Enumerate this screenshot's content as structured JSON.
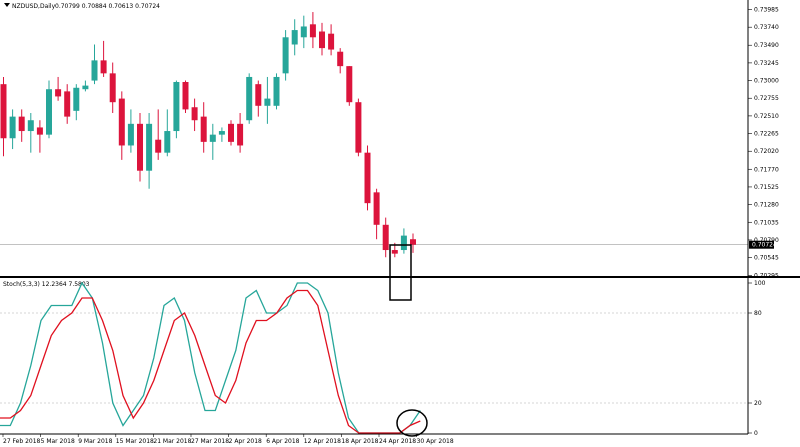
{
  "header": {
    "symbol_label": "NZDUSD,Daily",
    "ohlc_values": "0.70799 0.70884 0.70613 0.70724"
  },
  "colors": {
    "bull": "#26a69a",
    "bear": "#dc143c",
    "stoch_main": "#26a69a",
    "stoch_signal": "#e0101f",
    "grid": "#c8c8c8",
    "axis": "#000000",
    "price_line": "#9e9e9e"
  },
  "chart_data": [
    {
      "type": "candlestick",
      "title": "NZDUSD,Daily",
      "price_axis_ticks": [
        "0.73985",
        "0.73740",
        "0.73490",
        "0.73245",
        "0.73000",
        "0.72755",
        "0.72510",
        "0.72265",
        "0.72020",
        "0.71770",
        "0.71525",
        "0.71280",
        "0.71035",
        "0.70790",
        "0.70545",
        "0.70295"
      ],
      "ylim": [
        0.7029,
        0.7402
      ],
      "current_price": "0.70724",
      "date_labels": [
        "27 Feb 2018",
        "5 Mar 2018",
        "9 Mar 2018",
        "15 Mar 2018",
        "21 Mar 2018",
        "27 Mar 2018",
        "2 Apr 2018",
        "6 Apr 2018",
        "12 Apr 2018",
        "18 Apr 2018",
        "24 Apr 2018",
        "30 Apr 2018"
      ],
      "candles": [
        {
          "o": 0.7295,
          "h": 0.7305,
          "l": 0.7195,
          "c": 0.722
        },
        {
          "o": 0.722,
          "h": 0.726,
          "l": 0.7205,
          "c": 0.725
        },
        {
          "o": 0.725,
          "h": 0.726,
          "l": 0.7215,
          "c": 0.723
        },
        {
          "o": 0.723,
          "h": 0.7255,
          "l": 0.72,
          "c": 0.7245
        },
        {
          "o": 0.7235,
          "h": 0.7245,
          "l": 0.72,
          "c": 0.7225
        },
        {
          "o": 0.7225,
          "h": 0.73,
          "l": 0.722,
          "c": 0.7288
        },
        {
          "o": 0.7288,
          "h": 0.7305,
          "l": 0.7272,
          "c": 0.7278
        },
        {
          "o": 0.7285,
          "h": 0.7295,
          "l": 0.724,
          "c": 0.725
        },
        {
          "o": 0.7258,
          "h": 0.7295,
          "l": 0.7245,
          "c": 0.729
        },
        {
          "o": 0.7288,
          "h": 0.73,
          "l": 0.7285,
          "c": 0.7293
        },
        {
          "o": 0.73,
          "h": 0.735,
          "l": 0.7295,
          "c": 0.7328
        },
        {
          "o": 0.7328,
          "h": 0.7355,
          "l": 0.7305,
          "c": 0.731
        },
        {
          "o": 0.731,
          "h": 0.7325,
          "l": 0.7255,
          "c": 0.727
        },
        {
          "o": 0.7275,
          "h": 0.7285,
          "l": 0.719,
          "c": 0.721
        },
        {
          "o": 0.721,
          "h": 0.726,
          "l": 0.72,
          "c": 0.724
        },
        {
          "o": 0.724,
          "h": 0.7255,
          "l": 0.716,
          "c": 0.7175
        },
        {
          "o": 0.7175,
          "h": 0.7255,
          "l": 0.715,
          "c": 0.724
        },
        {
          "o": 0.7218,
          "h": 0.726,
          "l": 0.719,
          "c": 0.72
        },
        {
          "o": 0.72,
          "h": 0.726,
          "l": 0.7195,
          "c": 0.723
        },
        {
          "o": 0.723,
          "h": 0.73,
          "l": 0.722,
          "c": 0.7298
        },
        {
          "o": 0.7298,
          "h": 0.73,
          "l": 0.7255,
          "c": 0.726
        },
        {
          "o": 0.7263,
          "h": 0.7275,
          "l": 0.723,
          "c": 0.7245
        },
        {
          "o": 0.725,
          "h": 0.727,
          "l": 0.72,
          "c": 0.7215
        },
        {
          "o": 0.7215,
          "h": 0.724,
          "l": 0.719,
          "c": 0.7225
        },
        {
          "o": 0.7225,
          "h": 0.7235,
          "l": 0.7215,
          "c": 0.723
        },
        {
          "o": 0.724,
          "h": 0.7245,
          "l": 0.721,
          "c": 0.7215
        },
        {
          "o": 0.724,
          "h": 0.7255,
          "l": 0.72,
          "c": 0.721
        },
        {
          "o": 0.7245,
          "h": 0.731,
          "l": 0.724,
          "c": 0.7305
        },
        {
          "o": 0.7295,
          "h": 0.73,
          "l": 0.725,
          "c": 0.7265
        },
        {
          "o": 0.7265,
          "h": 0.7305,
          "l": 0.724,
          "c": 0.7275
        },
        {
          "o": 0.7265,
          "h": 0.731,
          "l": 0.726,
          "c": 0.7305
        },
        {
          "o": 0.731,
          "h": 0.737,
          "l": 0.73,
          "c": 0.736
        },
        {
          "o": 0.735,
          "h": 0.7385,
          "l": 0.7335,
          "c": 0.737
        },
        {
          "o": 0.736,
          "h": 0.739,
          "l": 0.7345,
          "c": 0.7375
        },
        {
          "o": 0.7378,
          "h": 0.7395,
          "l": 0.7345,
          "c": 0.736
        },
        {
          "o": 0.7368,
          "h": 0.738,
          "l": 0.7335,
          "c": 0.7345
        },
        {
          "o": 0.7365,
          "h": 0.7378,
          "l": 0.7335,
          "c": 0.7343
        },
        {
          "o": 0.734,
          "h": 0.7345,
          "l": 0.731,
          "c": 0.732
        },
        {
          "o": 0.732,
          "h": 0.732,
          "l": 0.7265,
          "c": 0.727
        },
        {
          "o": 0.727,
          "h": 0.7275,
          "l": 0.7195,
          "c": 0.72
        },
        {
          "o": 0.72,
          "h": 0.721,
          "l": 0.712,
          "c": 0.713
        },
        {
          "o": 0.7145,
          "h": 0.715,
          "l": 0.708,
          "c": 0.71
        },
        {
          "o": 0.71,
          "h": 0.711,
          "l": 0.7055,
          "c": 0.7065
        },
        {
          "o": 0.7065,
          "h": 0.7075,
          "l": 0.7055,
          "c": 0.706
        },
        {
          "o": 0.7065,
          "h": 0.7095,
          "l": 0.706,
          "c": 0.7085
        },
        {
          "o": 0.708,
          "h": 0.7088,
          "l": 0.7061,
          "c": 0.70724
        }
      ]
    },
    {
      "type": "line",
      "title": "Stoch(5,3,3) 12.2364 7.5803",
      "indicator_label": "Stoch(5,3,3)",
      "indicator_values": "12.2364 7.5803",
      "axis_ticks": [
        "100",
        "80",
        "20",
        "0"
      ],
      "ylim": [
        0,
        100
      ],
      "levels": [
        80,
        20
      ],
      "series": [
        {
          "values": [
            5,
            5,
            20,
            45,
            75,
            85,
            85,
            85,
            100,
            90,
            60,
            20,
            5,
            15,
            25,
            50,
            85,
            90,
            75,
            40,
            15,
            15,
            35,
            55,
            90,
            95,
            80,
            80,
            85,
            100,
            100,
            95,
            80,
            40,
            10,
            0,
            0,
            0,
            0,
            0,
            5,
            15
          ]
        },
        {
          "values": [
            10,
            10,
            15,
            25,
            45,
            65,
            75,
            80,
            90,
            90,
            75,
            55,
            25,
            10,
            20,
            35,
            55,
            75,
            80,
            65,
            45,
            25,
            20,
            35,
            60,
            75,
            75,
            80,
            90,
            95,
            95,
            85,
            55,
            25,
            5,
            0,
            0,
            0,
            0,
            0,
            5,
            8
          ]
        }
      ]
    }
  ]
}
